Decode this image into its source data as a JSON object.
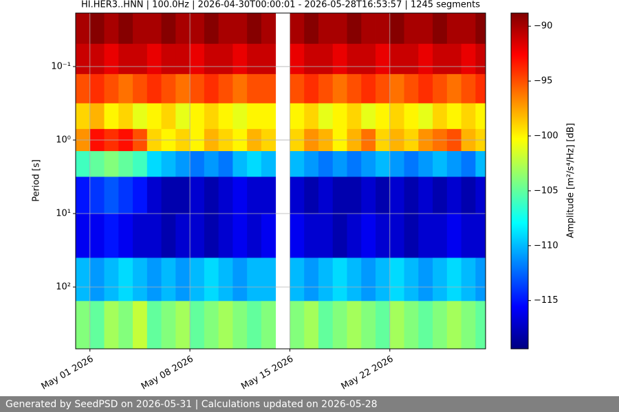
{
  "chart_data": {
    "type": "spectrogram",
    "title": "HI.HER3..HNN | 100.0Hz | 2026-04-30T00:00:01 - 2026-05-28T16:53:57 | 1245 segments",
    "ylabel": "Period [s]",
    "colorbar_label": "Amplitude [m²/s⁴/Hz] [dB]",
    "footer": "Generated by SeedPSD on 2026-05-31 | Calculations updated on 2026-05-28",
    "colormap": "jet",
    "ylog": true,
    "yinvert": true,
    "grid": true,
    "xlim": [
      "2026-04-30T00:00:01",
      "2026-05-28T16:53:57"
    ],
    "xticks": [
      {
        "value": "2026-05-01",
        "label": "May 01 2026"
      },
      {
        "value": "2026-05-08",
        "label": "May 08 2026"
      },
      {
        "value": "2026-05-15",
        "label": "May 15 2026"
      },
      {
        "value": "2026-05-22",
        "label": "May 22 2026"
      }
    ],
    "ylim": [
      0.0187,
      693
    ],
    "yticks": [
      {
        "value": 0.1,
        "label": "10⁻¹"
      },
      {
        "value": 1,
        "label": "10⁰"
      },
      {
        "value": 10,
        "label": "10¹"
      },
      {
        "value": 100,
        "label": "10²"
      }
    ],
    "clim": [
      -119.4,
      -88.8
    ],
    "cticks": [
      {
        "value": -90,
        "label": "−90"
      },
      {
        "value": -95,
        "label": "−95"
      },
      {
        "value": -100,
        "label": "−100"
      },
      {
        "value": -105,
        "label": "−105"
      },
      {
        "value": -110,
        "label": "−110"
      },
      {
        "value": -115,
        "label": "−115"
      }
    ],
    "x": [
      "2026-04-30",
      "2026-05-01",
      "2026-05-02",
      "2026-05-03",
      "2026-05-04",
      "2026-05-05",
      "2026-05-06",
      "2026-05-07",
      "2026-05-08",
      "2026-05-09",
      "2026-05-10",
      "2026-05-11",
      "2026-05-12",
      "2026-05-13",
      "2026-05-14",
      "2026-05-15",
      "2026-05-16",
      "2026-05-17",
      "2026-05-18",
      "2026-05-19",
      "2026-05-20",
      "2026-05-21",
      "2026-05-22",
      "2026-05-23",
      "2026-05-24",
      "2026-05-25",
      "2026-05-26",
      "2026-05-27",
      "2026-05-28"
    ],
    "periods": [
      0.03,
      0.08,
      0.2,
      0.5,
      1,
      2,
      5,
      20,
      80,
      300
    ],
    "z": [
      [
        -90,
        -89,
        -90,
        -89,
        -90,
        -90,
        -89,
        -90,
        -90,
        -89,
        -90,
        -90,
        -89,
        -90,
        null,
        -90,
        -89,
        -90,
        -90,
        -89,
        -90,
        -90,
        -89,
        -90,
        -90,
        -89,
        -90,
        -90,
        -89
      ],
      [
        -91,
        -91,
        -92,
        -91,
        -91,
        -92,
        -91,
        -91,
        -92,
        -91,
        -91,
        -92,
        -91,
        -91,
        null,
        -92,
        -91,
        -91,
        -92,
        -91,
        -91,
        -92,
        -91,
        -91,
        -92,
        -91,
        -91,
        -92,
        -91
      ],
      [
        -95,
        -94,
        -95,
        -96,
        -95,
        -94,
        -95,
        -96,
        -95,
        -94,
        -95,
        -96,
        -95,
        -95,
        null,
        -95,
        -94,
        -95,
        -96,
        -95,
        -94,
        -95,
        -96,
        -95,
        -94,
        -95,
        -96,
        -95,
        -94
      ],
      [
        -99,
        -98,
        -100,
        -99,
        -101,
        -100,
        -99,
        -101,
        -100,
        -99,
        -100,
        -101,
        -100,
        -100,
        null,
        -100,
        -99,
        -101,
        -100,
        -99,
        -101,
        -100,
        -99,
        -100,
        -101,
        -99,
        -100,
        -99,
        -100
      ],
      [
        -97,
        -93,
        -94,
        -93,
        -95,
        -99,
        -100,
        -99,
        -100,
        -98,
        -99,
        -100,
        -98,
        -99,
        null,
        -99,
        -97,
        -98,
        -100,
        -98,
        -96,
        -99,
        -98,
        -99,
        -97,
        -96,
        -95,
        -98,
        -99
      ],
      [
        -106,
        -105,
        -104,
        -105,
        -106,
        -109,
        -110,
        -111,
        -112,
        -111,
        -112,
        -110,
        -109,
        -110,
        null,
        -110,
        -111,
        -112,
        -111,
        -112,
        -111,
        -110,
        -111,
        -112,
        -111,
        -110,
        -111,
        -112,
        -110
      ],
      [
        -115,
        -114,
        -113,
        -114,
        -115,
        -117,
        -118,
        -118,
        -117,
        -118,
        -117,
        -116,
        -117,
        -117,
        null,
        -117,
        -118,
        -117,
        -118,
        -118,
        -117,
        -118,
        -117,
        -118,
        -117,
        -118,
        -117,
        -118,
        -117
      ],
      [
        -116,
        -116,
        -115,
        -116,
        -117,
        -117,
        -118,
        -117,
        -117,
        -118,
        -117,
        -116,
        -117,
        -116,
        null,
        -116,
        -117,
        -117,
        -118,
        -117,
        -116,
        -117,
        -117,
        -118,
        -117,
        -117,
        -116,
        -117,
        -117
      ],
      [
        -110,
        -111,
        -110,
        -109,
        -110,
        -111,
        -110,
        -111,
        -110,
        -109,
        -110,
        -111,
        -110,
        -110,
        null,
        -110,
        -111,
        -110,
        -109,
        -110,
        -111,
        -110,
        -109,
        -110,
        -111,
        -110,
        -109,
        -110,
        -111
      ],
      [
        -104,
        -105,
        -103,
        -104,
        -102,
        -105,
        -104,
        -103,
        -105,
        -104,
        -103,
        -104,
        -105,
        -104,
        null,
        -104,
        -103,
        -105,
        -104,
        -103,
        -104,
        -105,
        -103,
        -104,
        -105,
        -104,
        -103,
        -104,
        -105
      ]
    ]
  }
}
